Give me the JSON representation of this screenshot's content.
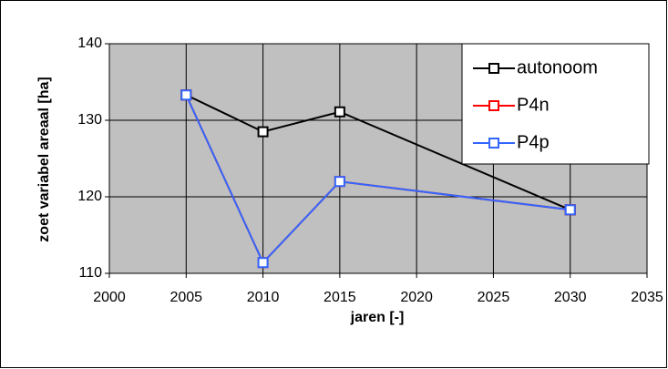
{
  "chart_data": {
    "type": "line",
    "x_label": "jaren [-]",
    "y_label": "zoet variabel areaal [ha]",
    "x": [
      2005,
      2010,
      2015,
      2030
    ],
    "series": [
      {
        "name": "autonoom",
        "color": "#000000",
        "values": [
          133.3,
          128.5,
          131.1,
          118.3
        ]
      },
      {
        "name": "P4n",
        "color": "#ff0000",
        "values": [
          133.3,
          111.4,
          122.0,
          118.3
        ]
      },
      {
        "name": "P4p",
        "color": "#3366ff",
        "values": [
          133.3,
          111.4,
          122.0,
          118.3
        ]
      }
    ],
    "xlim": [
      2000,
      2035
    ],
    "xticks": [
      2000,
      2005,
      2010,
      2015,
      2020,
      2025,
      2030,
      2035
    ],
    "ylim": [
      110,
      140
    ],
    "yticks": [
      110,
      120,
      130,
      140
    ],
    "grid": true,
    "legend": "upper right",
    "plot_background": "#c0c0c0"
  }
}
